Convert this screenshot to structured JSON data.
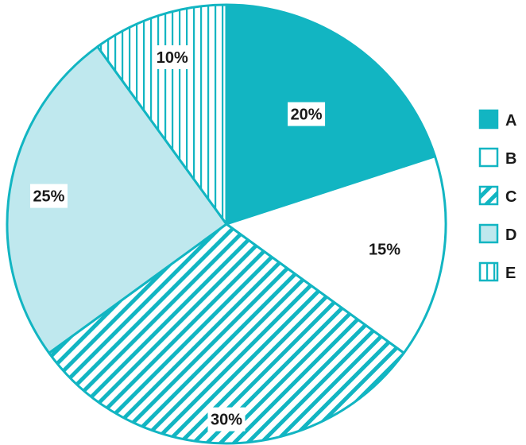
{
  "chart_data": {
    "type": "pie",
    "title": "",
    "legend_position": "right",
    "start_angle": "12 o'clock, clockwise",
    "outline_color": "#12b5c2",
    "categories": [
      "A",
      "B",
      "C",
      "D",
      "E"
    ],
    "values": [
      20,
      15,
      30,
      25,
      10
    ],
    "value_labels": [
      "20%",
      "15%",
      "30%",
      "25%",
      "10%"
    ],
    "fills": [
      {
        "pattern": "solid",
        "color": "#12b5c2"
      },
      {
        "pattern": "none",
        "color": "#ffffff"
      },
      {
        "pattern": "diagonal-hatch",
        "color": "#12b5c2"
      },
      {
        "pattern": "solid-light",
        "color": "#bfe8ee"
      },
      {
        "pattern": "vertical-hatch",
        "color": "#12b5c2"
      }
    ]
  }
}
